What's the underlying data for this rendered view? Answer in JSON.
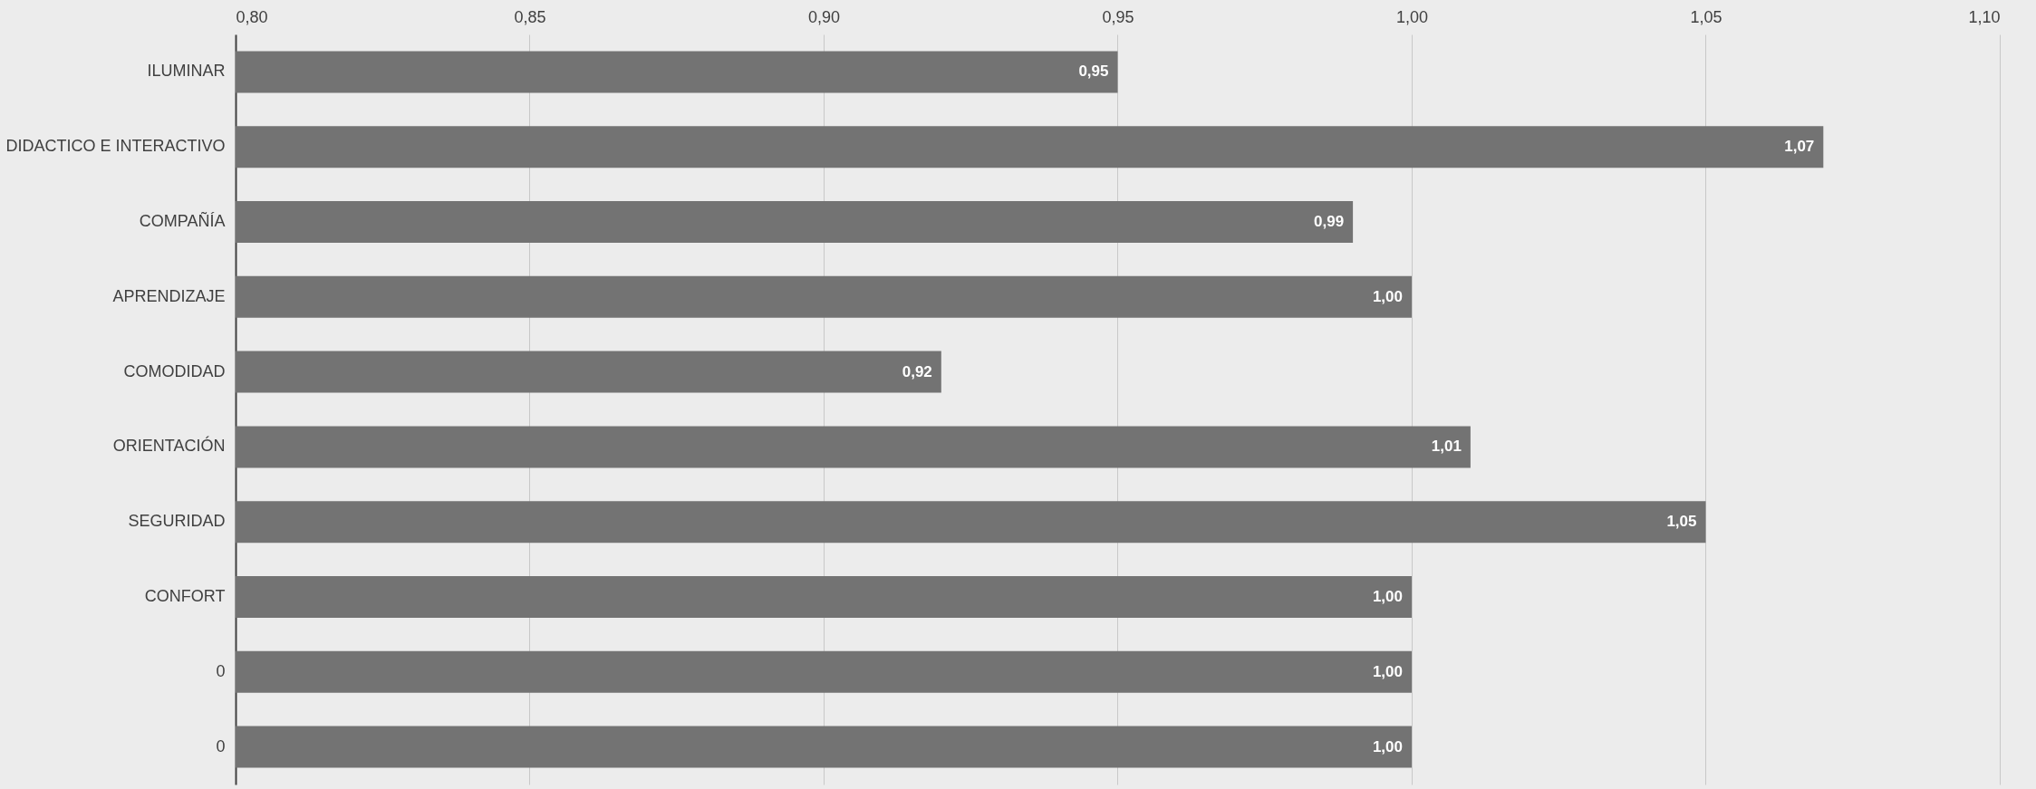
{
  "chart_data": {
    "type": "bar",
    "orientation": "horizontal",
    "categories": [
      "ILUMINAR",
      "DIDACTICO E INTERACTIVO",
      "COMPAÑÍA",
      "APRENDIZAJE",
      "COMODIDAD",
      "ORIENTACIÓN",
      "SEGURIDAD",
      "CONFORT",
      "0",
      "0"
    ],
    "values": [
      0.95,
      1.07,
      0.99,
      1.0,
      0.92,
      1.01,
      1.05,
      1.0,
      1.0,
      1.0
    ],
    "value_labels": [
      "0,95",
      "1,07",
      "0,99",
      "1,00",
      "0,92",
      "1,01",
      "1,05",
      "1,00",
      "1,00",
      "1,00"
    ],
    "color": "#737373",
    "xlim": [
      0.8,
      1.1
    ],
    "xticks": [
      {
        "value": 0.8,
        "label": "0,80"
      },
      {
        "value": 0.85,
        "label": "0,85"
      },
      {
        "value": 0.9,
        "label": "0,90"
      },
      {
        "value": 0.95,
        "label": "0,95"
      },
      {
        "value": 1.0,
        "label": "1,00"
      },
      {
        "value": 1.05,
        "label": "1,05"
      },
      {
        "value": 1.1,
        "label": "1,10"
      }
    ],
    "grid": "x"
  }
}
